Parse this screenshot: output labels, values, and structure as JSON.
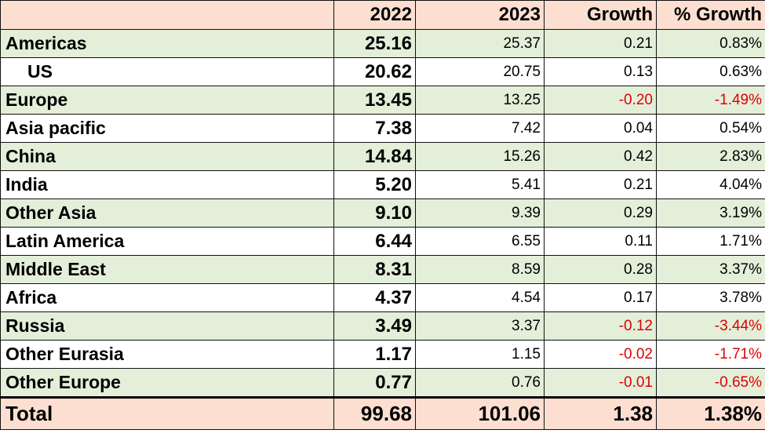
{
  "table": {
    "headers": [
      "",
      "2022",
      "2023",
      "Growth",
      "% Growth"
    ],
    "rows": [
      {
        "region": "Americas",
        "y2022": "25.16",
        "y2023": "25.37",
        "growth": "0.21",
        "pct": "0.83%"
      },
      {
        "region": "US",
        "y2022": "20.62",
        "y2023": "20.75",
        "growth": "0.13",
        "pct": "0.63%"
      },
      {
        "region": "Europe",
        "y2022": "13.45",
        "y2023": "13.25",
        "growth": "-0.20",
        "pct": "-1.49%"
      },
      {
        "region": "Asia pacific",
        "y2022": "7.38",
        "y2023": "7.42",
        "growth": "0.04",
        "pct": "0.54%"
      },
      {
        "region": "China",
        "y2022": "14.84",
        "y2023": "15.26",
        "growth": "0.42",
        "pct": "2.83%"
      },
      {
        "region": "India",
        "y2022": "5.20",
        "y2023": "5.41",
        "growth": "0.21",
        "pct": "4.04%"
      },
      {
        "region": "Other Asia",
        "y2022": "9.10",
        "y2023": "9.39",
        "growth": "0.29",
        "pct": "3.19%"
      },
      {
        "region": "Latin America",
        "y2022": "6.44",
        "y2023": "6.55",
        "growth": "0.11",
        "pct": "1.71%"
      },
      {
        "region": "Middle East",
        "y2022": "8.31",
        "y2023": "8.59",
        "growth": "0.28",
        "pct": "3.37%"
      },
      {
        "region": "Africa",
        "y2022": "4.37",
        "y2023": "4.54",
        "growth": "0.17",
        "pct": "3.78%"
      },
      {
        "region": "Russia",
        "y2022": "3.49",
        "y2023": "3.37",
        "growth": "-0.12",
        "pct": "-3.44%"
      },
      {
        "region": "Other Eurasia",
        "y2022": "1.17",
        "y2023": "1.15",
        "growth": "-0.02",
        "pct": "-1.71%"
      },
      {
        "region": "Other Europe",
        "y2022": "0.77",
        "y2023": "0.76",
        "growth": "-0.01",
        "pct": "-0.65%"
      }
    ],
    "total": {
      "region": "Total",
      "y2022": "99.68",
      "y2023": "101.06",
      "growth": "1.38",
      "pct": "1.38%"
    }
  },
  "colors": {
    "header_bg": "#fcdfd0",
    "shaded_row_bg": "#e3efd9",
    "negative_text": "#e00000"
  }
}
